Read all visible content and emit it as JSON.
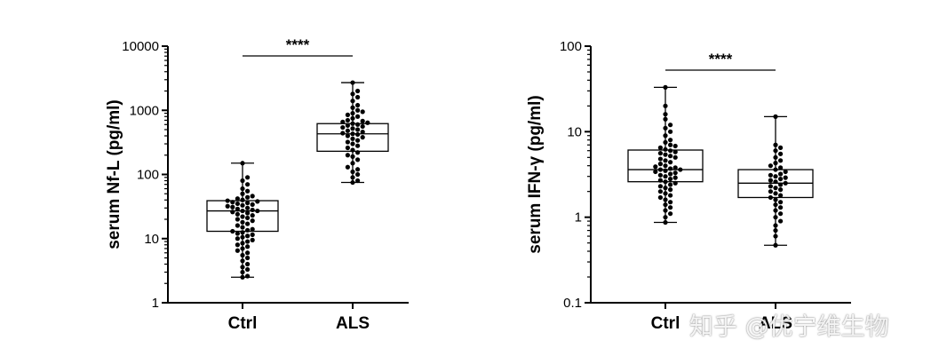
{
  "watermark": "知乎 @优宁维生物",
  "chart_data": [
    {
      "type": "box",
      "ylabel": "serum Nf-L (pg/ml)",
      "yscale": "log",
      "ylim": [
        1,
        10000
      ],
      "yticks": [
        1,
        10,
        100,
        1000,
        10000
      ],
      "ytick_labels": [
        "1",
        "10",
        "100",
        "1000",
        "10000"
      ],
      "categories": [
        "Ctrl",
        "ALS"
      ],
      "boxes": [
        {
          "category": "Ctrl",
          "min": 2.5,
          "q1": 13,
          "median": 27,
          "q3": 39,
          "max": 150,
          "points": [
            2.5,
            2.6,
            3.0,
            3.3,
            3.6,
            4.0,
            4.5,
            5.0,
            5.5,
            6.0,
            6.5,
            7.0,
            7.5,
            8.0,
            8.5,
            9.0,
            9.5,
            10,
            10.5,
            11,
            11.5,
            12,
            12.5,
            13,
            13.5,
            14,
            15,
            16,
            17,
            18,
            19,
            20,
            21,
            22,
            23,
            24,
            25,
            26,
            27,
            27,
            28,
            29,
            30,
            31,
            32,
            33,
            34,
            35,
            36,
            37,
            38,
            39,
            40,
            42,
            44,
            46,
            50,
            55,
            60,
            70,
            80,
            90,
            150
          ]
        },
        {
          "category": "ALS",
          "min": 75,
          "q1": 230,
          "median": 430,
          "q3": 620,
          "max": 2700,
          "points": [
            75,
            80,
            90,
            100,
            110,
            120,
            130,
            150,
            170,
            190,
            200,
            220,
            240,
            260,
            280,
            300,
            320,
            340,
            360,
            380,
            400,
            420,
            430,
            440,
            460,
            480,
            500,
            520,
            540,
            560,
            580,
            600,
            620,
            640,
            660,
            680,
            700,
            750,
            800,
            850,
            900,
            950,
            1000,
            1100,
            1200,
            1400,
            1600,
            1800,
            2000,
            2700
          ]
        }
      ],
      "significance": "****"
    },
    {
      "type": "box",
      "ylabel": "serum IFN-γ (pg/ml)",
      "yscale": "log",
      "ylim": [
        0.1,
        100
      ],
      "yticks": [
        0.1,
        1,
        10,
        100
      ],
      "ytick_labels": [
        "0.1",
        "1",
        "10",
        "100"
      ],
      "categories": [
        "Ctrl",
        "ALS"
      ],
      "boxes": [
        {
          "category": "Ctrl",
          "min": 0.87,
          "q1": 2.6,
          "median": 3.6,
          "q3": 6.1,
          "max": 33,
          "points": [
            0.87,
            1.0,
            1.1,
            1.2,
            1.3,
            1.4,
            1.5,
            1.6,
            1.7,
            1.8,
            1.9,
            2.0,
            2.1,
            2.2,
            2.3,
            2.4,
            2.5,
            2.6,
            2.7,
            2.8,
            2.9,
            3.0,
            3.1,
            3.2,
            3.3,
            3.4,
            3.5,
            3.6,
            3.6,
            3.7,
            3.8,
            3.9,
            4.0,
            4.2,
            4.4,
            4.6,
            4.8,
            5.0,
            5.2,
            5.4,
            5.6,
            5.8,
            6.0,
            6.2,
            6.5,
            6.8,
            7.0,
            7.5,
            8.0,
            9.0,
            10,
            11,
            12,
            14,
            16,
            20,
            33
          ]
        },
        {
          "category": "ALS",
          "min": 0.47,
          "q1": 1.7,
          "median": 2.5,
          "q3": 3.6,
          "max": 15,
          "points": [
            0.47,
            0.6,
            0.7,
            0.8,
            0.9,
            1.0,
            1.1,
            1.2,
            1.3,
            1.4,
            1.5,
            1.6,
            1.7,
            1.8,
            1.9,
            2.0,
            2.1,
            2.2,
            2.3,
            2.4,
            2.5,
            2.6,
            2.7,
            2.8,
            2.9,
            3.0,
            3.1,
            3.2,
            3.4,
            3.6,
            3.8,
            4.0,
            4.3,
            4.6,
            5.0,
            5.5,
            6.0,
            6.5,
            7.0,
            15
          ]
        }
      ],
      "significance": "****"
    }
  ]
}
